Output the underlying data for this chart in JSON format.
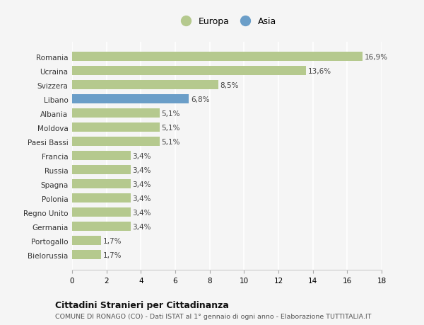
{
  "countries": [
    "Romania",
    "Ucraina",
    "Svizzera",
    "Libano",
    "Albania",
    "Moldova",
    "Paesi Bassi",
    "Francia",
    "Russia",
    "Spagna",
    "Polonia",
    "Regno Unito",
    "Germania",
    "Portogallo",
    "Bielorussia"
  ],
  "values": [
    16.9,
    13.6,
    8.5,
    6.8,
    5.1,
    5.1,
    5.1,
    3.4,
    3.4,
    3.4,
    3.4,
    3.4,
    3.4,
    1.7,
    1.7
  ],
  "continents": [
    "Europa",
    "Europa",
    "Europa",
    "Asia",
    "Europa",
    "Europa",
    "Europa",
    "Europa",
    "Europa",
    "Europa",
    "Europa",
    "Europa",
    "Europa",
    "Europa",
    "Europa"
  ],
  "color_europa": "#b5c98e",
  "color_asia": "#6b9ec8",
  "bg_color": "#f5f5f5",
  "title": "Cittadini Stranieri per Cittadinanza",
  "subtitle": "COMUNE DI RONAGO (CO) - Dati ISTAT al 1° gennaio di ogni anno - Elaborazione TUTTITALIA.IT",
  "legend_europa": "Europa",
  "legend_asia": "Asia",
  "xlim": [
    0,
    18
  ],
  "xticks": [
    0,
    2,
    4,
    6,
    8,
    10,
    12,
    14,
    16,
    18
  ]
}
